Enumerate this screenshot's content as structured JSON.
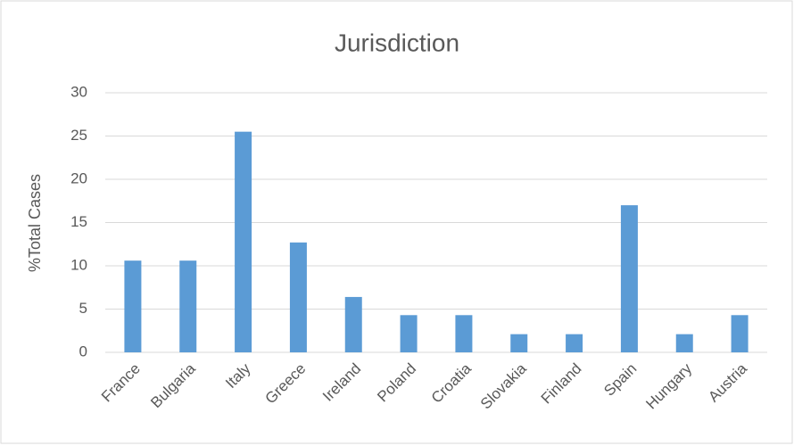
{
  "chart_data": {
    "type": "bar",
    "title": "Jurisdiction",
    "y_label": "%Total Cases",
    "categories": [
      "France",
      "Bulgaria",
      "Italy",
      "Greece",
      "Ireland",
      "Poland",
      "Croatia",
      "Slovakia",
      "Finland",
      "Spain",
      "Hungary",
      "Austria"
    ],
    "values": [
      10.6,
      10.6,
      25.5,
      12.7,
      6.4,
      4.3,
      4.3,
      2.1,
      2.1,
      17.0,
      2.1,
      4.3
    ],
    "color": "#5b9bd5",
    "ylim": [
      0,
      30
    ],
    "yticks": [
      0,
      5,
      10,
      15,
      20,
      25,
      30
    ],
    "grid": true
  }
}
